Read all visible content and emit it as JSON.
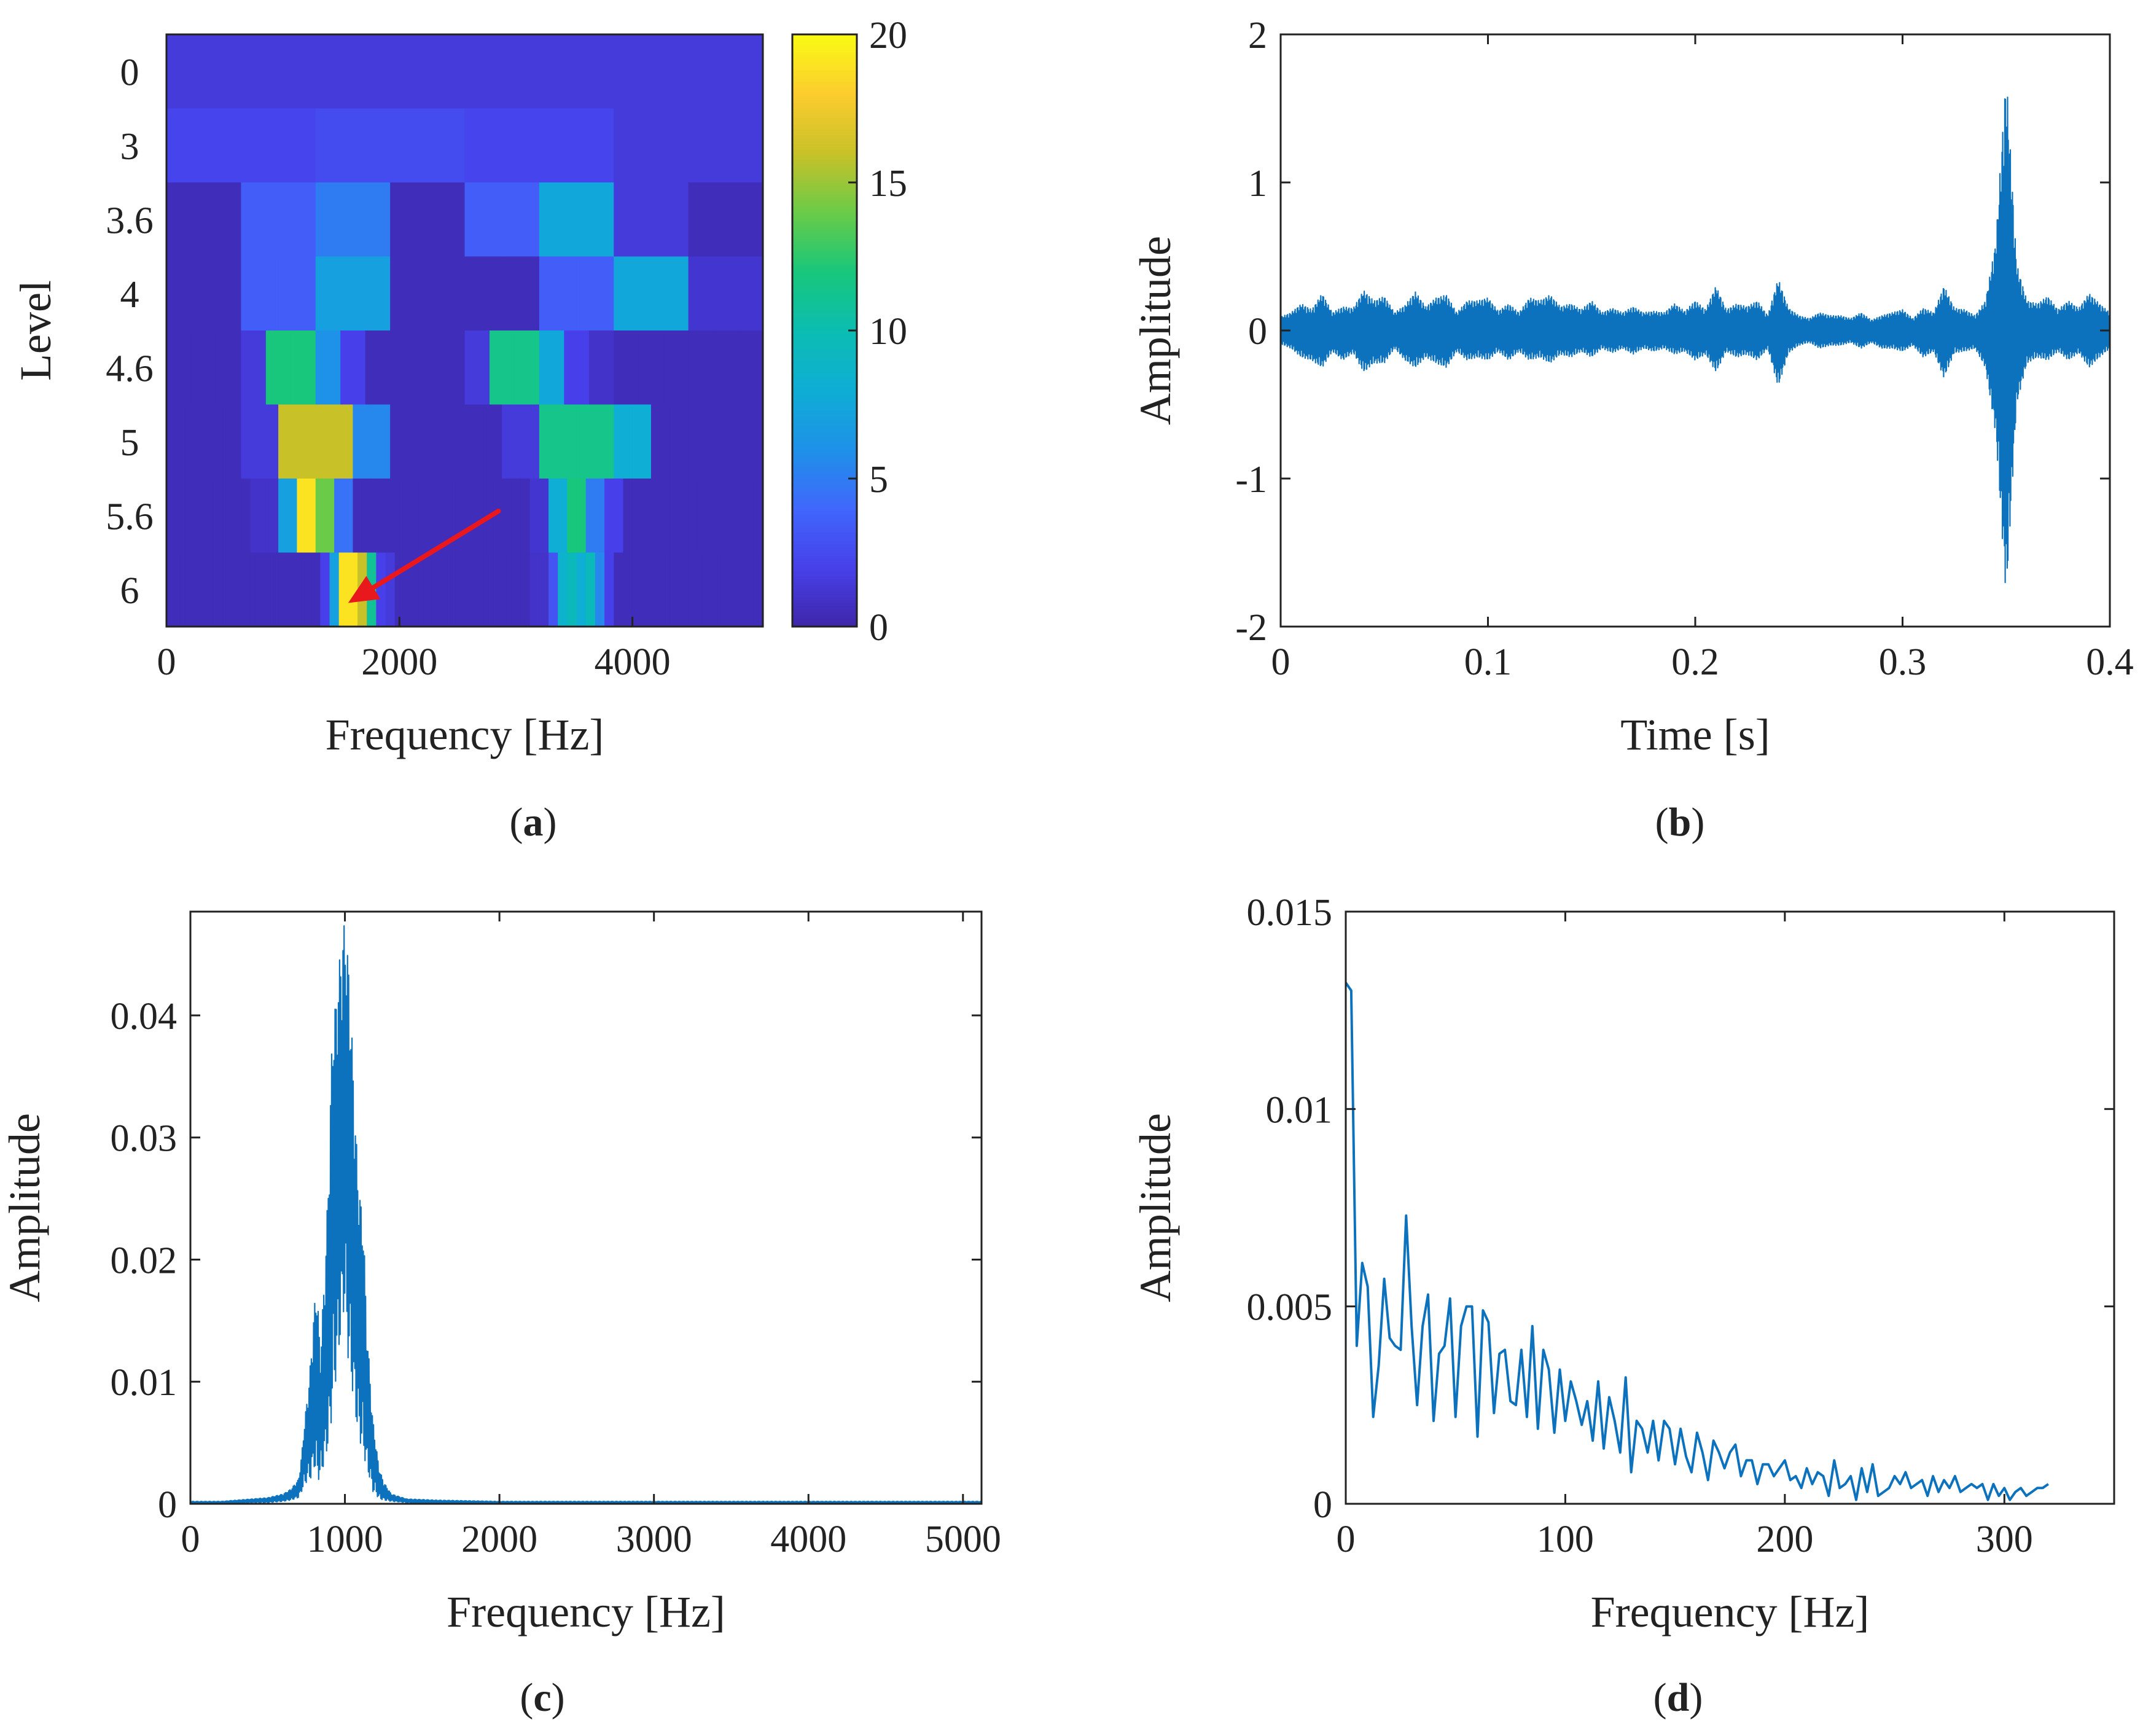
{
  "chart_data": [
    {
      "id": "a",
      "caption": "a",
      "type": "heatmap",
      "title": "",
      "xlabel": "Frequency [Hz]",
      "ylabel": "Level",
      "xlim": [
        0,
        5120
      ],
      "xticks": [
        0,
        2000,
        4000
      ],
      "xtick_labels": [
        "0",
        "2000",
        "4000"
      ],
      "levels": [
        "0",
        "3",
        "3.6",
        "4",
        "4.6",
        "5",
        "5.6",
        "6"
      ],
      "colorbar": {
        "range": [
          0,
          20
        ],
        "ticks": [
          0,
          5,
          10,
          15,
          20
        ],
        "tick_labels": [
          "0",
          "5",
          "10",
          "15",
          "20"
        ]
      },
      "rows": [
        [
          1.5
        ],
        [
          2.2,
          2.6,
          2.2,
          1.5
        ],
        [
          0.5,
          3.5,
          5.0,
          0.5,
          3.5,
          7.5,
          1.5,
          0.5
        ],
        [
          0.5,
          0.5,
          3.5,
          3.5,
          7.0,
          7.0,
          0.5,
          0.5,
          0.5,
          0.5,
          3.5,
          3.5,
          7.5,
          7.5,
          1.2,
          1.2
        ],
        [
          0.5,
          0.5,
          0.5,
          1.5,
          12.0,
          12.0,
          6.0,
          2.0,
          0.5,
          0.5,
          0.5,
          0.5,
          1.5,
          11.5,
          11.5,
          7.5,
          2.0,
          1.0,
          0.5,
          0.5,
          0.5,
          0.5,
          0.5,
          0.5
        ],
        [
          0.5,
          0.5,
          0.5,
          0.5,
          1.5,
          1.5,
          16.0,
          16.0,
          16.0,
          16.0,
          5.5,
          5.5,
          0.5,
          0.5,
          0.5,
          0.5,
          0.5,
          0.5,
          1.5,
          1.5,
          11.5,
          11.5,
          11.5,
          11.5,
          8.0,
          8.0,
          0.5,
          0.5,
          0.5,
          0.5,
          0.5,
          0.5
        ],
        [
          0.5,
          0.5,
          0.5,
          0.5,
          0.5,
          0.5,
          0.5,
          0.5,
          0.5,
          1.0,
          1.0,
          1.0,
          7.0,
          7.0,
          19.0,
          19.0,
          14.0,
          14.0,
          4.5,
          4.5,
          0.5,
          0.5,
          0.5,
          0.5,
          0.5,
          0.5,
          0.5,
          0.5,
          0.5,
          0.5,
          0.5,
          0.5,
          0.5,
          0.5,
          0.5,
          0.5,
          0.5,
          0.5,
          0.5,
          1.2,
          1.2,
          8.0,
          8.0,
          12.0,
          12.0,
          5.0,
          5.0,
          2.0,
          2.0,
          0.5,
          0.5,
          0.5,
          0.5,
          0.5,
          0.5,
          0.5,
          0.5,
          0.5,
          0.5,
          0.5,
          0.5,
          0.5,
          0.5,
          0.5
        ],
        [
          0.5,
          0.5,
          0.5,
          0.5,
          0.5,
          0.5,
          0.5,
          0.5,
          0.5,
          0.5,
          0.5,
          0.5,
          0.5,
          0.5,
          0.5,
          0.5,
          0.5,
          0.5,
          0.5,
          0.5,
          0.5,
          0.5,
          0.5,
          0.5,
          0.5,
          0.5,
          0.5,
          0.5,
          0.5,
          0.5,
          0.5,
          0.5,
          0.5,
          2.0,
          2.0,
          7.0,
          7.0,
          19.0,
          19.0,
          19.0,
          19.0,
          16.0,
          16.0,
          11.0,
          11.0,
          2.0,
          2.0,
          1.5,
          1.5,
          0.5,
          0.5,
          0.5,
          0.5,
          0.5,
          0.5,
          0.5,
          0.5,
          0.5,
          0.5,
          0.5,
          0.5,
          0.5,
          0.5,
          0.5,
          0.5,
          0.5,
          0.5,
          0.5,
          0.5,
          0.5,
          0.5,
          0.5,
          0.5,
          0.5,
          0.5,
          0.5,
          0.5,
          0.5,
          1.0,
          1.0,
          1.0,
          1.0,
          3.0,
          3.0,
          8.5,
          8.5,
          9.5,
          9.5,
          8.0,
          8.0,
          9.5,
          9.5,
          5.5,
          5.5,
          2.0,
          2.0,
          0.5,
          0.5,
          0.5,
          0.5,
          0.5,
          0.5,
          0.5,
          0.5,
          0.5,
          0.5,
          0.5,
          0.5,
          0.5,
          0.5,
          0.5,
          0.5,
          0.5,
          0.5,
          0.5,
          0.5,
          0.5,
          0.5,
          0.5,
          0.5,
          0.5,
          0.5,
          0.5,
          0.5,
          0.5,
          0.5,
          0.5,
          0.5
        ]
      ],
      "annotation": {
        "type": "arrow",
        "color": "#e8181c",
        "from": [
          2850,
          5.55
        ],
        "to": [
          1560,
          6.15
        ]
      }
    },
    {
      "id": "b",
      "caption": "b",
      "type": "line",
      "title": "",
      "xlabel": "Time [s]",
      "ylabel": "Amplitude",
      "xlim": [
        0,
        0.4
      ],
      "ylim": [
        -2,
        2
      ],
      "xticks": [
        0,
        0.1,
        0.2,
        0.3,
        0.4
      ],
      "xtick_labels": [
        "0",
        "0.1",
        "0.2",
        "0.3",
        "0.4"
      ],
      "yticks": [
        -2,
        -1,
        0,
        1,
        2
      ],
      "ytick_labels": [
        "-2",
        "-1",
        "0",
        "1",
        "2"
      ],
      "line_color": "#0d72bd",
      "envelope": {
        "x": [
          0,
          0.005,
          0.01,
          0.015,
          0.02,
          0.025,
          0.03,
          0.035,
          0.04,
          0.045,
          0.05,
          0.055,
          0.06,
          0.065,
          0.07,
          0.075,
          0.08,
          0.085,
          0.09,
          0.095,
          0.1,
          0.105,
          0.11,
          0.115,
          0.12,
          0.125,
          0.13,
          0.135,
          0.14,
          0.145,
          0.15,
          0.155,
          0.16,
          0.165,
          0.17,
          0.175,
          0.18,
          0.185,
          0.19,
          0.195,
          0.2,
          0.205,
          0.21,
          0.215,
          0.22,
          0.225,
          0.23,
          0.235,
          0.24,
          0.245,
          0.25,
          0.255,
          0.26,
          0.265,
          0.27,
          0.275,
          0.28,
          0.285,
          0.29,
          0.295,
          0.3,
          0.305,
          0.31,
          0.315,
          0.32,
          0.325,
          0.33,
          0.335,
          0.34,
          0.345,
          0.35,
          0.355,
          0.36,
          0.365,
          0.37,
          0.375,
          0.38,
          0.385,
          0.39,
          0.395,
          0.4
        ],
        "upper": [
          0.09,
          0.12,
          0.18,
          0.14,
          0.25,
          0.12,
          0.16,
          0.15,
          0.27,
          0.2,
          0.23,
          0.12,
          0.17,
          0.26,
          0.16,
          0.22,
          0.24,
          0.12,
          0.2,
          0.2,
          0.22,
          0.13,
          0.18,
          0.12,
          0.22,
          0.2,
          0.24,
          0.16,
          0.18,
          0.14,
          0.2,
          0.12,
          0.15,
          0.12,
          0.16,
          0.12,
          0.13,
          0.12,
          0.18,
          0.13,
          0.2,
          0.14,
          0.3,
          0.14,
          0.18,
          0.16,
          0.2,
          0.1,
          0.35,
          0.15,
          0.1,
          0.08,
          0.12,
          0.1,
          0.1,
          0.08,
          0.12,
          0.07,
          0.1,
          0.12,
          0.14,
          0.08,
          0.15,
          0.12,
          0.3,
          0.15,
          0.14,
          0.1,
          0.2,
          0.6,
          1.75,
          0.45,
          0.2,
          0.18,
          0.23,
          0.14,
          0.2,
          0.15,
          0.25,
          0.18,
          0.12
        ],
        "lower": [
          -0.09,
          -0.12,
          -0.18,
          -0.2,
          -0.25,
          -0.14,
          -0.2,
          -0.15,
          -0.28,
          -0.22,
          -0.22,
          -0.12,
          -0.2,
          -0.25,
          -0.18,
          -0.22,
          -0.25,
          -0.14,
          -0.2,
          -0.18,
          -0.2,
          -0.14,
          -0.2,
          -0.14,
          -0.2,
          -0.18,
          -0.22,
          -0.16,
          -0.18,
          -0.14,
          -0.18,
          -0.12,
          -0.15,
          -0.12,
          -0.16,
          -0.12,
          -0.14,
          -0.12,
          -0.16,
          -0.14,
          -0.2,
          -0.16,
          -0.28,
          -0.14,
          -0.18,
          -0.16,
          -0.2,
          -0.12,
          -0.38,
          -0.15,
          -0.1,
          -0.08,
          -0.12,
          -0.1,
          -0.1,
          -0.08,
          -0.12,
          -0.08,
          -0.12,
          -0.12,
          -0.14,
          -0.1,
          -0.18,
          -0.14,
          -0.32,
          -0.15,
          -0.14,
          -0.12,
          -0.25,
          -0.7,
          -1.82,
          -0.5,
          -0.22,
          -0.18,
          -0.2,
          -0.14,
          -0.2,
          -0.15,
          -0.25,
          -0.18,
          -0.12
        ]
      }
    },
    {
      "id": "c",
      "caption": "c",
      "type": "line",
      "title": "",
      "xlabel": "Frequency [Hz]",
      "ylabel": "Amplitude",
      "xlim": [
        0,
        5120
      ],
      "ylim": [
        0,
        0.0485
      ],
      "xticks": [
        0,
        1000,
        2000,
        3000,
        4000,
        5000
      ],
      "xtick_labels": [
        "0",
        "1000",
        "2000",
        "3000",
        "4000",
        "5000"
      ],
      "yticks": [
        0,
        0.01,
        0.02,
        0.03,
        0.04
      ],
      "ytick_labels": [
        "0",
        "0.01",
        "0.02",
        "0.03",
        "0.04"
      ],
      "line_color": "#0d72bd",
      "envelope": {
        "x": [
          0,
          200,
          400,
          500,
          600,
          650,
          700,
          720,
          740,
          760,
          780,
          800,
          820,
          840,
          860,
          880,
          900,
          920,
          940,
          960,
          980,
          1000,
          1020,
          1040,
          1060,
          1080,
          1100,
          1120,
          1140,
          1160,
          1180,
          1200,
          1220,
          1250,
          1300,
          1400,
          1600,
          2000,
          3000,
          4000,
          5120
        ],
        "upper": [
          0.0002,
          0.0002,
          0.0004,
          0.0005,
          0.0008,
          0.0012,
          0.002,
          0.004,
          0.007,
          0.009,
          0.012,
          0.016,
          0.018,
          0.012,
          0.017,
          0.022,
          0.03,
          0.04,
          0.041,
          0.044,
          0.046,
          0.048,
          0.045,
          0.04,
          0.034,
          0.028,
          0.025,
          0.023,
          0.015,
          0.011,
          0.007,
          0.005,
          0.003,
          0.0018,
          0.0008,
          0.0004,
          0.0003,
          0.0002,
          0.0002,
          0.0002,
          0.0002
        ],
        "lower": [
          0,
          0,
          0.0001,
          0.0001,
          0.0002,
          0.0003,
          0.0005,
          0.001,
          0.0015,
          0.002,
          0.002,
          0.003,
          0.002,
          0.002,
          0.003,
          0.004,
          0.005,
          0.008,
          0.01,
          0.012,
          0.015,
          0.016,
          0.012,
          0.01,
          0.008,
          0.006,
          0.005,
          0.004,
          0.003,
          0.002,
          0.001,
          0.0008,
          0.0004,
          0.0003,
          0.0002,
          0.0001,
          0,
          0,
          0,
          0,
          0
        ]
      }
    },
    {
      "id": "d",
      "caption": "d",
      "type": "line",
      "title": "",
      "xlabel": "Frequency [Hz]",
      "ylabel": "Amplitude",
      "xlim": [
        0,
        350
      ],
      "ylim": [
        0,
        0.015
      ],
      "xticks": [
        0,
        100,
        200,
        300
      ],
      "xtick_labels": [
        "0",
        "100",
        "200",
        "300"
      ],
      "yticks": [
        0,
        0.005,
        0.01,
        0.015
      ],
      "ytick_labels": [
        "0",
        "0.005",
        "0.01",
        "0.015"
      ],
      "line_color": "#0d72bd",
      "x": [
        0,
        2.5,
        5,
        7.5,
        10,
        12.5,
        15,
        17.5,
        20,
        22.5,
        25,
        27.5,
        30,
        32.5,
        35,
        37.5,
        40,
        42.5,
        45,
        47.5,
        50,
        52.5,
        55,
        57.5,
        60,
        62.5,
        65,
        67.5,
        70,
        72.5,
        75,
        77.5,
        80,
        82.5,
        85,
        87.5,
        90,
        92.5,
        95,
        97.5,
        100,
        102.5,
        105,
        107.5,
        110,
        112.5,
        115,
        117.5,
        120,
        122.5,
        125,
        127.5,
        130,
        132.5,
        135,
        137.5,
        140,
        142.5,
        145,
        147.5,
        150,
        152.5,
        155,
        157.5,
        160,
        162.5,
        165,
        167.5,
        170,
        172.5,
        175,
        177.5,
        180,
        182.5,
        185,
        187.5,
        190,
        192.5,
        195,
        197.5,
        200,
        202.5,
        205,
        207.5,
        210,
        212.5,
        215,
        217.5,
        220,
        222.5,
        225,
        227.5,
        230,
        232.5,
        235,
        237.5,
        240,
        242.5,
        245,
        247.5,
        250,
        252.5,
        255,
        257.5,
        260,
        262.5,
        265,
        267.5,
        270,
        272.5,
        275,
        277.5,
        280,
        282.5,
        285,
        287.5,
        290,
        292.5,
        295,
        297.5,
        300,
        302.5,
        305,
        307.5,
        310,
        312.5,
        315,
        317.5,
        320
      ],
      "y": [
        0.0132,
        0.013,
        0.004,
        0.0061,
        0.0055,
        0.0022,
        0.0035,
        0.0057,
        0.0042,
        0.004,
        0.0039,
        0.0073,
        0.0045,
        0.0025,
        0.0045,
        0.0053,
        0.0021,
        0.0038,
        0.004,
        0.0052,
        0.0022,
        0.0045,
        0.005,
        0.005,
        0.0017,
        0.0049,
        0.0046,
        0.0023,
        0.0038,
        0.0039,
        0.0026,
        0.0025,
        0.0039,
        0.0022,
        0.0045,
        0.0019,
        0.0039,
        0.0034,
        0.0018,
        0.0034,
        0.0021,
        0.0031,
        0.0026,
        0.002,
        0.0026,
        0.0016,
        0.0031,
        0.0014,
        0.0027,
        0.0021,
        0.0013,
        0.0032,
        0.0008,
        0.0021,
        0.0019,
        0.0013,
        0.0021,
        0.0011,
        0.0021,
        0.0019,
        0.001,
        0.0019,
        0.0012,
        0.0008,
        0.0018,
        0.0013,
        0.0006,
        0.0016,
        0.0013,
        0.0009,
        0.0013,
        0.0015,
        0.0007,
        0.0011,
        0.0011,
        0.0005,
        0.001,
        0.001,
        0.0007,
        0.0009,
        0.0011,
        0.0006,
        0.0007,
        0.0004,
        0.0009,
        0.0005,
        0.0008,
        0.0007,
        0.0002,
        0.0011,
        0.0004,
        0.0005,
        0.0007,
        0.0001,
        0.0009,
        0.0003,
        0.001,
        0.0002,
        0.0003,
        0.0004,
        0.0007,
        0.0005,
        0.0008,
        0.0004,
        0.0005,
        0.0006,
        0.0002,
        0.0007,
        0.0003,
        0.0006,
        0.0004,
        0.0007,
        0.0003,
        0.0004,
        0.0005,
        0.0004,
        0.0005,
        0.0001,
        0.0005,
        0.0002,
        0.0004,
        0.0001,
        0.0003,
        0.0004,
        0.0002,
        0.0003,
        0.0004,
        0.0004,
        0.0005
      ]
    }
  ]
}
